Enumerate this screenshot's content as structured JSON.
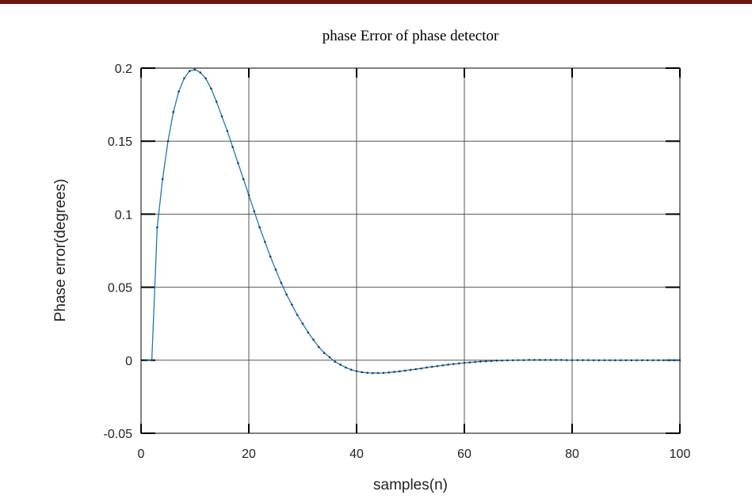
{
  "chart_data": {
    "type": "line",
    "title": "phase Error of phase detector",
    "xlabel": "samples(n)",
    "ylabel": "Phase error(degrees)",
    "xlim": [
      0,
      100
    ],
    "ylim": [
      -0.05,
      0.2
    ],
    "xticks": [
      0,
      20,
      40,
      60,
      80,
      100
    ],
    "xtick_labels": [
      "0",
      "20",
      "40",
      "60",
      "80",
      "100"
    ],
    "yticks": [
      -0.05,
      0,
      0.05,
      0.1,
      0.15,
      0.2
    ],
    "ytick_labels": [
      "-0.05",
      "0",
      "0.05",
      "0.1",
      "0.15",
      "0.2"
    ],
    "grid": true,
    "series": [
      {
        "color": "#1f77b4",
        "marker": "point",
        "x": [
          1,
          2,
          3,
          4,
          5,
          6,
          7,
          8,
          9,
          10,
          11,
          12,
          13,
          14,
          15,
          16,
          17,
          18,
          19,
          20,
          21,
          22,
          23,
          24,
          25,
          26,
          27,
          28,
          29,
          30,
          31,
          32,
          33,
          34,
          35,
          36,
          37,
          38,
          39,
          40,
          41,
          42,
          43,
          44,
          45,
          46,
          47,
          48,
          49,
          50,
          51,
          52,
          53,
          54,
          55,
          56,
          57,
          58,
          59,
          60,
          61,
          62,
          63,
          64,
          65,
          66,
          67,
          68,
          69,
          70,
          71,
          72,
          73,
          74,
          75,
          76,
          77,
          78,
          79,
          80,
          81,
          82,
          83,
          84,
          85,
          86,
          87,
          88,
          89,
          90,
          91,
          92,
          93,
          94,
          95,
          96,
          97,
          98,
          99,
          100
        ],
        "y": [
          0.0,
          0.0,
          0.091,
          0.124,
          0.15,
          0.17,
          0.184,
          0.193,
          0.198,
          0.199,
          0.197,
          0.193,
          0.186,
          0.177,
          0.167,
          0.157,
          0.146,
          0.135,
          0.124,
          0.113,
          0.102,
          0.091,
          0.081,
          0.071,
          0.062,
          0.053,
          0.045,
          0.038,
          0.031,
          0.025,
          0.019,
          0.014,
          0.009,
          0.005,
          0.002,
          -0.001,
          -0.003,
          -0.005,
          -0.0065,
          -0.0075,
          -0.0082,
          -0.0086,
          -0.0088,
          -0.0088,
          -0.0087,
          -0.0084,
          -0.008,
          -0.0076,
          -0.0071,
          -0.0066,
          -0.0061,
          -0.0056,
          -0.005,
          -0.0045,
          -0.004,
          -0.0035,
          -0.003,
          -0.0026,
          -0.0022,
          -0.0018,
          -0.0015,
          -0.0012,
          -0.0009,
          -0.0007,
          -0.0005,
          -0.0003,
          -0.0002,
          -0.0001,
          0.0,
          0.0001,
          0.0001,
          0.0002,
          0.0002,
          0.0002,
          0.0002,
          0.0002,
          0.0002,
          0.0002,
          0.0001,
          0.0001,
          0.0001,
          0.0001,
          0.0001,
          0.0,
          0.0,
          0.0,
          0.0,
          0.0,
          0.0,
          0.0,
          0.0,
          0.0,
          0.0,
          0.0,
          0.0,
          0.0,
          0.0,
          0.0,
          0.0,
          0.0
        ]
      }
    ]
  }
}
